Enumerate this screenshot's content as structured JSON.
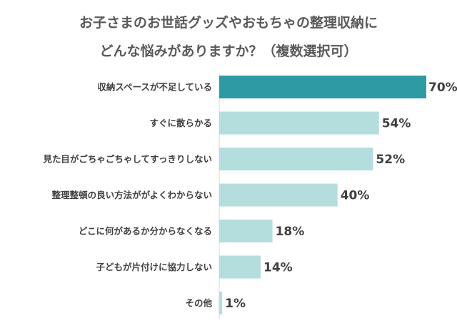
{
  "chart_data": {
    "type": "bar",
    "orientation": "horizontal",
    "title_lines": [
      "お子さまのお世話グッズやおもちゃの整理収納に",
      "どんな悩みがありますか？（複数選択可）"
    ],
    "categories": [
      "収納スペースが不足している",
      "すぐに散らかる",
      "見た目がごちゃごちゃしてすっきりしない",
      "整理整頓の良い方法ががよくわからない",
      "どこに何があるか分からなくなる",
      "子どもが片付けに協力しない",
      "その他"
    ],
    "values": [
      70,
      54,
      52,
      40,
      18,
      14,
      1
    ],
    "value_labels": [
      "70%",
      "54%",
      "52%",
      "40%",
      "18%",
      "14%",
      "1%"
    ],
    "xlim": [
      0,
      70
    ],
    "grid": false,
    "legend": "none",
    "colors": {
      "highlight": "#2e9aa4",
      "bar": "#b3dedd",
      "text": "#404040",
      "title": "#595959"
    }
  }
}
